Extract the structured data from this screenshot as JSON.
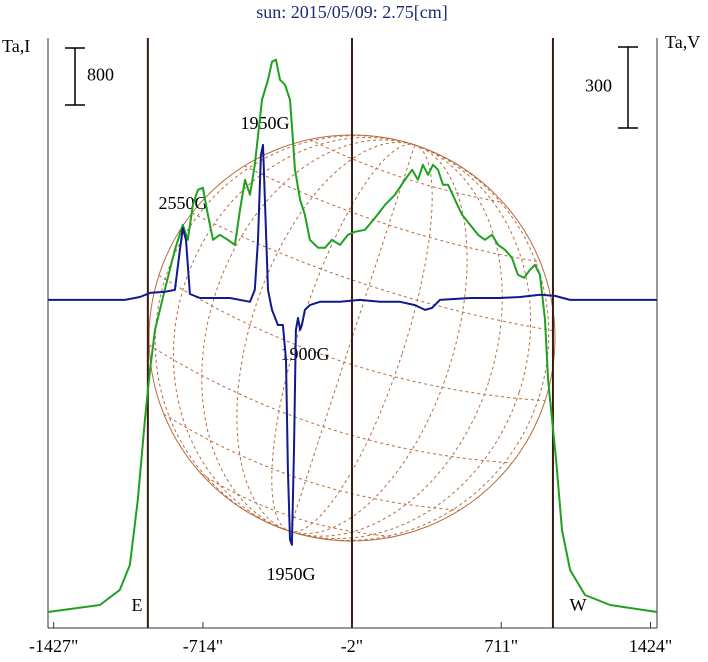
{
  "chart_data": {
    "type": "line",
    "title": "sun: 2015/05/09: 2.75[cm]",
    "y_label": "Ta,I",
    "y2_label": "Ta,V",
    "y_scale_bar": 800,
    "y2_scale_bar": 300,
    "xlim": [
      -1454,
      1455
    ],
    "ylim": [
      0,
      8280
    ],
    "y2lim": [
      -1215,
      970
    ],
    "xticks": [
      {
        "value": -1427,
        "label": "-1427\""
      },
      {
        "value": -714,
        "label": "-714\""
      },
      {
        "value": -2,
        "label": "-2\""
      },
      {
        "value": 711,
        "label": "711\""
      },
      {
        "value": 1424,
        "label": "1424\""
      }
    ],
    "vertical_lines": [
      -977,
      -2,
      958
    ],
    "annotations": [
      "2550G",
      "1950G",
      "1900G",
      "1950G",
      "E",
      "W"
    ],
    "series": [
      {
        "name": "Ta,I",
        "color": "#1fa11f",
        "x": [
          -1454,
          -1206,
          -1111,
          -1063,
          -1025,
          -991,
          -967,
          -943,
          -896,
          -848,
          -810,
          -786,
          -762,
          -738,
          -714,
          -690,
          -666,
          -633,
          -595,
          -561,
          -537,
          -513,
          -489,
          -466,
          -432,
          -403,
          -384,
          -365,
          -346,
          -322,
          -298,
          -284,
          -274,
          -250,
          -227,
          -203,
          -164,
          -131,
          -98,
          -59,
          -21,
          12,
          60,
          108,
          156,
          203,
          251,
          285,
          313,
          337,
          361,
          385,
          409,
          433,
          457,
          490,
          524,
          562,
          600,
          633,
          667,
          696,
          729,
          762,
          791,
          820,
          848,
          872,
          896,
          920,
          935,
          954,
          973,
          1001,
          1040,
          1111,
          1231,
          1455
        ],
        "values": [
          225,
          323,
          534,
          885,
          1797,
          2920,
          3622,
          4184,
          4746,
          5307,
          5658,
          5448,
          5939,
          6150,
          6178,
          5799,
          5448,
          5518,
          5448,
          5377,
          5869,
          6290,
          6079,
          6501,
          7413,
          7694,
          7947,
          7975,
          7694,
          7624,
          7413,
          6852,
          6430,
          6009,
          5799,
          5448,
          5335,
          5335,
          5448,
          5377,
          5518,
          5560,
          5588,
          5756,
          5939,
          6079,
          6290,
          6430,
          6290,
          6501,
          6360,
          6501,
          6430,
          6220,
          6220,
          6009,
          5799,
          5658,
          5518,
          5448,
          5518,
          5377,
          5307,
          5195,
          4956,
          4914,
          5026,
          5097,
          4956,
          4324,
          3482,
          2920,
          2359,
          1376,
          814,
          463,
          323,
          225
        ]
      },
      {
        "name": "Ta,V",
        "color": "#101a8c",
        "axis": "y2",
        "x": [
          -1454,
          -1087,
          -1015,
          -967,
          -896,
          -848,
          -824,
          -810,
          -795,
          -776,
          -728,
          -585,
          -489,
          -466,
          -451,
          -437,
          -427,
          -418,
          -403,
          -384,
          -356,
          -332,
          -317,
          -308,
          -298,
          -289,
          -279,
          -270,
          -260,
          -250,
          -241,
          -227,
          -203,
          -155,
          -59,
          36,
          132,
          227,
          299,
          347,
          380,
          418,
          562,
          705,
          801,
          896,
          968,
          1040,
          1455
        ],
        "values": [
          0,
          0,
          11,
          26,
          30,
          37,
          185,
          266,
          222,
          22,
          7,
          7,
          -7,
          37,
          222,
          537,
          574,
          370,
          37,
          -37,
          -93,
          -93,
          -222,
          -629,
          -888,
          -907,
          -555,
          -111,
          -67,
          -111,
          -93,
          -37,
          -19,
          -7,
          -7,
          0,
          -7,
          -7,
          -19,
          -37,
          -30,
          0,
          7,
          7,
          11,
          19,
          15,
          0,
          0
        ]
      }
    ]
  }
}
